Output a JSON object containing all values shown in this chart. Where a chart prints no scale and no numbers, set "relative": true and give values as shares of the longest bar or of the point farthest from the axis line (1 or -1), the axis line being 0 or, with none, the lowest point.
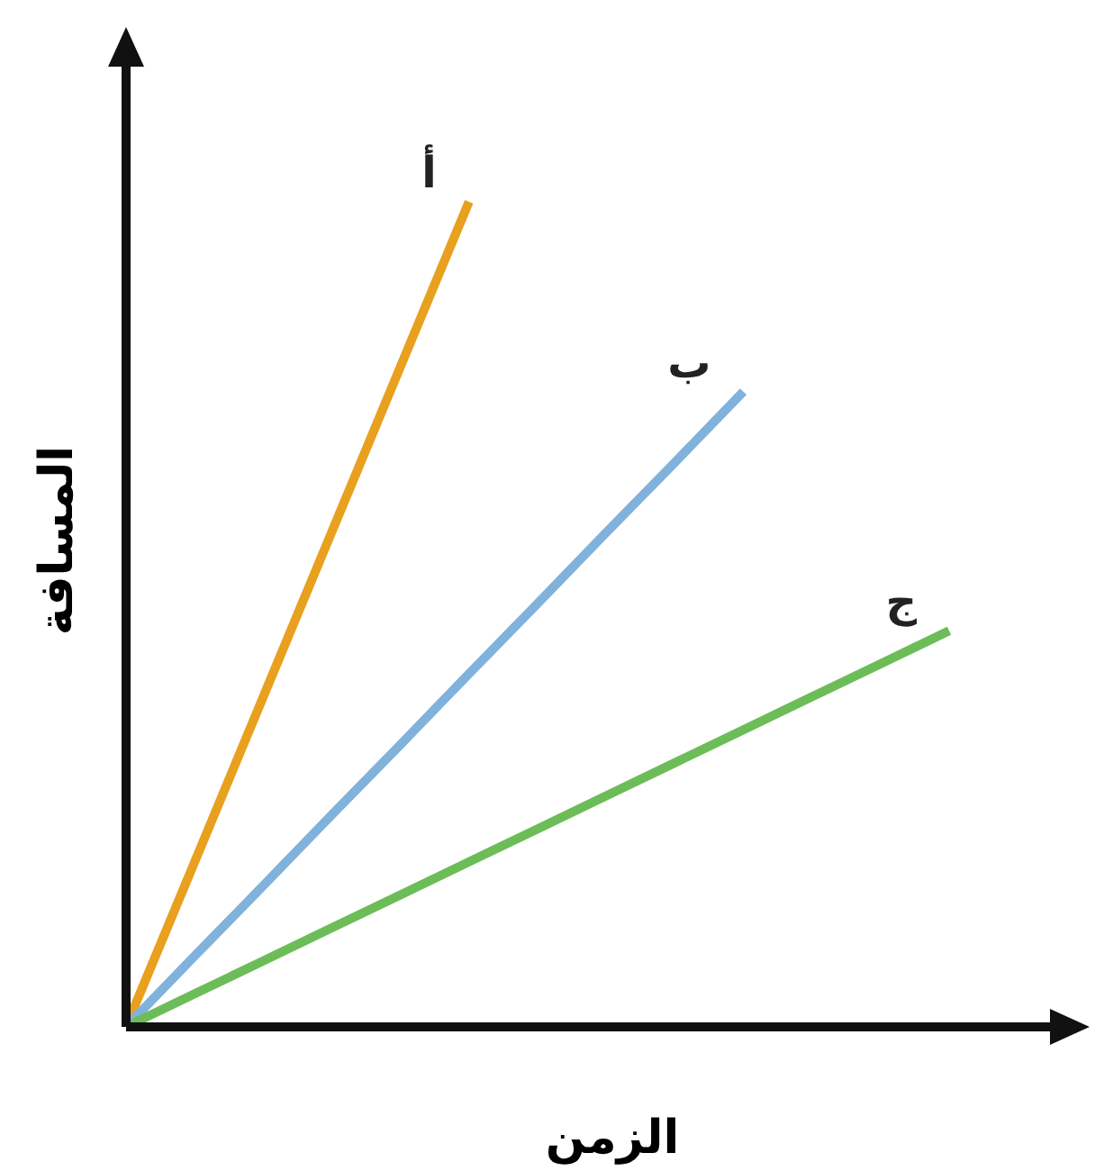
{
  "chart_data": {
    "type": "line",
    "relative": true,
    "xlabel": "الزمن",
    "ylabel": "المسافة",
    "categories": [
      null,
      null,
      null,
      null,
      null,
      null,
      null,
      null,
      null,
      null,
      null,
      null,
      null
    ],
    "series": [
      {
        "name": "أ",
        "color": "#e8a01e",
        "values": [
          0,
          0.2,
          0.4,
          0.6,
          0.8,
          1,
          null,
          null,
          null,
          null,
          null,
          null,
          null
        ]
      },
      {
        "name": "ب",
        "color": "#80b2dc",
        "values": [
          0,
          0.086,
          0.171,
          0.257,
          0.342,
          0.428,
          0.513,
          0.599,
          0.684,
          0.77,
          null,
          null,
          null
        ]
      },
      {
        "name": "ج",
        "color": "#6cbd58",
        "values": [
          0,
          0.04,
          0.08,
          0.12,
          0.16,
          0.2,
          0.24,
          0.28,
          0.32,
          0.36,
          0.4,
          0.44,
          0.48
        ]
      }
    ]
  }
}
